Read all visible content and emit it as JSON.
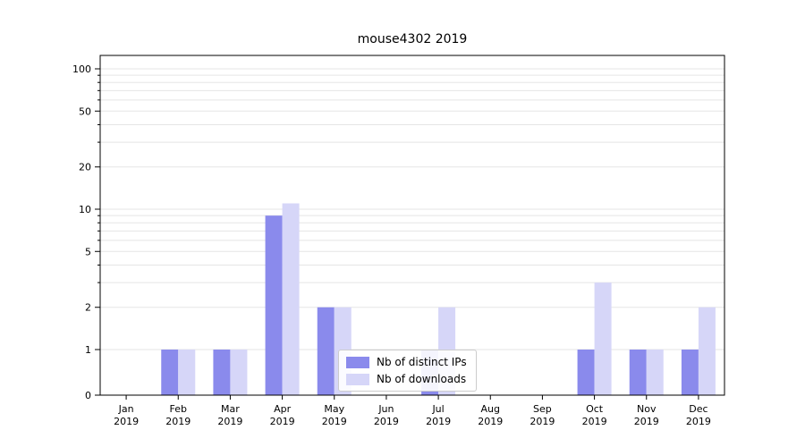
{
  "title": "mouse4302 2019",
  "chart_data": {
    "type": "bar",
    "title": "mouse4302 2019",
    "categories": [
      "Jan 2019",
      "Feb 2019",
      "Mar 2019",
      "Apr 2019",
      "May 2019",
      "Jun 2019",
      "Jul 2019",
      "Aug 2019",
      "Sep 2019",
      "Oct 2019",
      "Nov 2019",
      "Dec 2019"
    ],
    "series": [
      {
        "name": "Nb of distinct IPs",
        "color": "#8a8aec",
        "values": [
          0,
          1,
          1,
          9,
          2,
          0,
          1,
          0,
          0,
          1,
          1,
          1
        ]
      },
      {
        "name": "Nb of downloads",
        "color": "#d6d6f8",
        "values": [
          0,
          1,
          1,
          11,
          2,
          0,
          2,
          0,
          0,
          3,
          1,
          2
        ]
      }
    ],
    "xlabel": "",
    "ylabel": "",
    "yscale": "symlog",
    "yticks": [
      0,
      1,
      2,
      5,
      10,
      20,
      50,
      100
    ],
    "minor_gridlines": [
      3,
      4,
      6,
      7,
      8,
      9,
      30,
      40,
      60,
      70,
      80,
      90
    ],
    "ylim": [
      0,
      135
    ],
    "grid": true,
    "legend_position": "lower center"
  },
  "colors": {
    "grid": "#e5e5e5",
    "axis": "#000000",
    "tick_label": "#000000"
  }
}
